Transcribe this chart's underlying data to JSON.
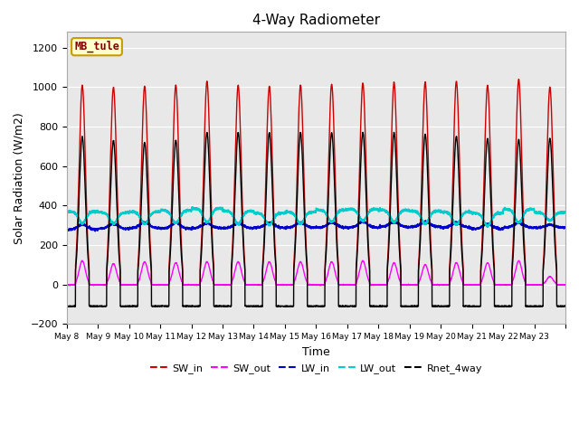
{
  "title": "4-Way Radiometer",
  "xlabel": "Time",
  "ylabel": "Solar Radiation (W/m2)",
  "ylim": [
    -200,
    1300
  ],
  "yticks": [
    -200,
    0,
    200,
    400,
    600,
    800,
    1000,
    1200
  ],
  "station_label": "MB_tule",
  "start_day": 8,
  "end_day": 23,
  "n_days": 16,
  "background_color": "#e0e0e0",
  "plot_bg": "#e8e8e8",
  "lines": {
    "SW_in": {
      "color": "#cc0000",
      "lw": 1.0
    },
    "SW_out": {
      "color": "#ff00ff",
      "lw": 1.0
    },
    "LW_in": {
      "color": "#0000cc",
      "lw": 1.0
    },
    "LW_out": {
      "color": "#00cccc",
      "lw": 1.2
    },
    "Rnet_4way": {
      "color": "#000000",
      "lw": 1.0
    }
  },
  "legend_order": [
    "SW_in",
    "SW_out",
    "LW_in",
    "LW_out",
    "Rnet_4way"
  ],
  "sw_peaks": [
    1010,
    1000,
    1005,
    1010,
    1030,
    1010,
    1005,
    1010,
    1015,
    1020,
    1025,
    1025,
    1030,
    1010,
    1040,
    1000
  ],
  "sw_out_peaks": [
    120,
    105,
    115,
    110,
    115,
    115,
    115,
    115,
    115,
    120,
    110,
    100,
    110,
    110,
    120,
    40
  ],
  "rnet_peaks": [
    750,
    730,
    720,
    730,
    770,
    770,
    770,
    770,
    770,
    770,
    770,
    760,
    750,
    740,
    735,
    740
  ],
  "lw_in_base": [
    278,
    282,
    285,
    282,
    285,
    285,
    288,
    288,
    288,
    288,
    292,
    292,
    288,
    282,
    288,
    288
  ],
  "lw_in_amp": [
    25,
    25,
    30,
    30,
    25,
    25,
    25,
    25,
    25,
    30,
    25,
    25,
    25,
    25,
    25,
    15
  ],
  "lw_out_base": [
    370,
    365,
    368,
    375,
    385,
    372,
    362,
    368,
    378,
    382,
    378,
    372,
    368,
    362,
    382,
    365
  ],
  "lw_out_dip": [
    60,
    55,
    60,
    65,
    70,
    65,
    60,
    60,
    60,
    60,
    60,
    65,
    65,
    65,
    68,
    40
  ]
}
